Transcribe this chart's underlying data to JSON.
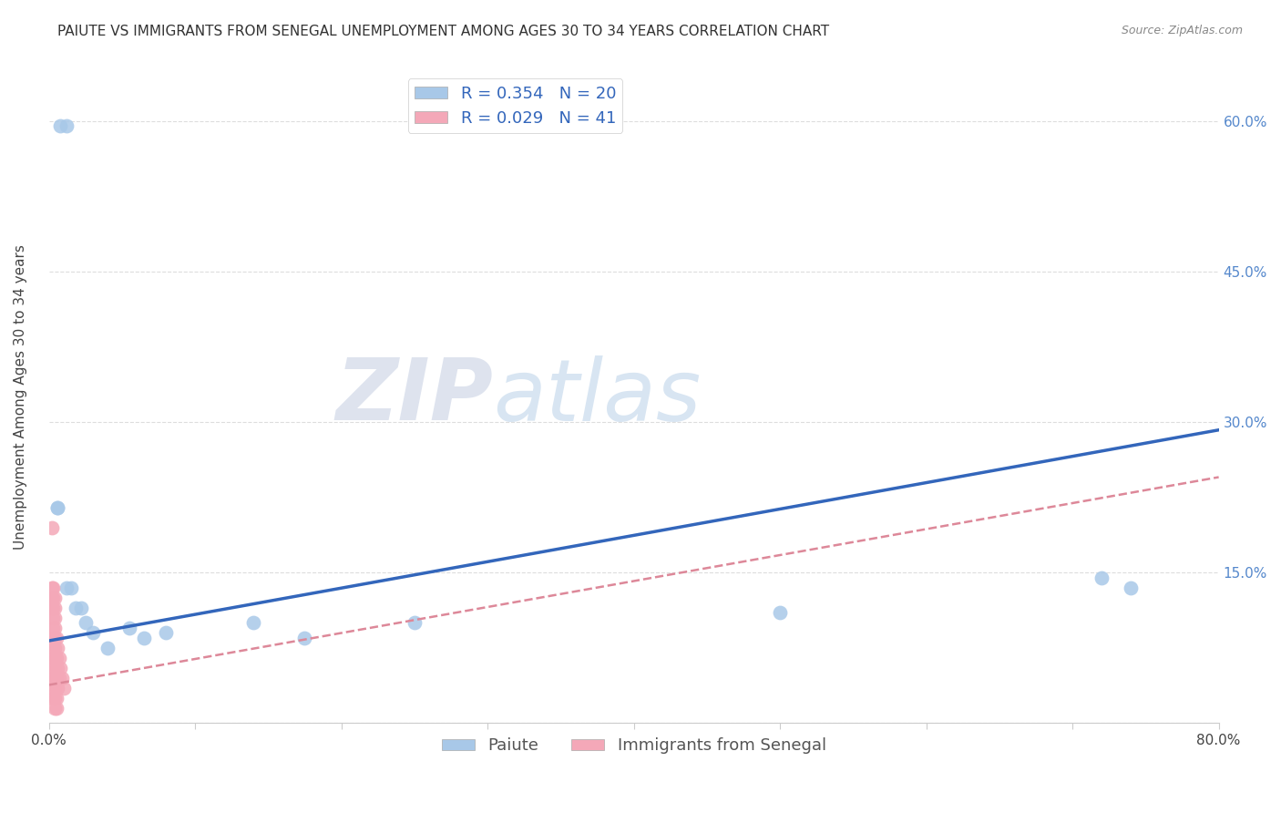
{
  "title": "PAIUTE VS IMMIGRANTS FROM SENEGAL UNEMPLOYMENT AMONG AGES 30 TO 34 YEARS CORRELATION CHART",
  "source": "Source: ZipAtlas.com",
  "ylabel": "Unemployment Among Ages 30 to 34 years",
  "xlim": [
    0.0,
    0.8
  ],
  "ylim": [
    0.0,
    0.65
  ],
  "xticks": [
    0.0,
    0.1,
    0.2,
    0.3,
    0.4,
    0.5,
    0.6,
    0.7,
    0.8
  ],
  "yticks_right": [
    0.0,
    0.15,
    0.3,
    0.45,
    0.6
  ],
  "watermark_zip": "ZIP",
  "watermark_atlas": "atlas",
  "legend": {
    "paiute_R": 0.354,
    "paiute_N": 20,
    "senegal_R": 0.029,
    "senegal_N": 41
  },
  "paiute_color": "#a8c8e8",
  "senegal_color": "#f4a8b8",
  "paiute_line_color": "#3366bb",
  "senegal_line_color": "#dd8899",
  "paiute_points": [
    [
      0.008,
      0.595
    ],
    [
      0.012,
      0.595
    ],
    [
      0.006,
      0.215
    ],
    [
      0.006,
      0.215
    ],
    [
      0.012,
      0.135
    ],
    [
      0.015,
      0.135
    ],
    [
      0.018,
      0.115
    ],
    [
      0.022,
      0.115
    ],
    [
      0.025,
      0.1
    ],
    [
      0.03,
      0.09
    ],
    [
      0.04,
      0.075
    ],
    [
      0.055,
      0.095
    ],
    [
      0.065,
      0.085
    ],
    [
      0.08,
      0.09
    ],
    [
      0.14,
      0.1
    ],
    [
      0.175,
      0.085
    ],
    [
      0.25,
      0.1
    ],
    [
      0.5,
      0.11
    ],
    [
      0.72,
      0.145
    ],
    [
      0.74,
      0.135
    ]
  ],
  "senegal_points": [
    [
      0.002,
      0.195
    ],
    [
      0.002,
      0.135
    ],
    [
      0.002,
      0.125
    ],
    [
      0.002,
      0.115
    ],
    [
      0.003,
      0.135
    ],
    [
      0.003,
      0.125
    ],
    [
      0.003,
      0.115
    ],
    [
      0.003,
      0.105
    ],
    [
      0.003,
      0.095
    ],
    [
      0.003,
      0.085
    ],
    [
      0.003,
      0.075
    ],
    [
      0.003,
      0.065
    ],
    [
      0.003,
      0.055
    ],
    [
      0.003,
      0.045
    ],
    [
      0.003,
      0.035
    ],
    [
      0.003,
      0.025
    ],
    [
      0.004,
      0.125
    ],
    [
      0.004,
      0.115
    ],
    [
      0.004,
      0.105
    ],
    [
      0.004,
      0.095
    ],
    [
      0.004,
      0.085
    ],
    [
      0.004,
      0.075
    ],
    [
      0.004,
      0.065
    ],
    [
      0.004,
      0.055
    ],
    [
      0.004,
      0.045
    ],
    [
      0.004,
      0.035
    ],
    [
      0.004,
      0.025
    ],
    [
      0.004,
      0.015
    ],
    [
      0.005,
      0.085
    ],
    [
      0.005,
      0.065
    ],
    [
      0.005,
      0.045
    ],
    [
      0.005,
      0.025
    ],
    [
      0.005,
      0.015
    ],
    [
      0.006,
      0.075
    ],
    [
      0.006,
      0.055
    ],
    [
      0.006,
      0.035
    ],
    [
      0.007,
      0.065
    ],
    [
      0.007,
      0.045
    ],
    [
      0.008,
      0.055
    ],
    [
      0.009,
      0.045
    ],
    [
      0.01,
      0.035
    ]
  ],
  "background_color": "#ffffff",
  "grid_color": "#dddddd",
  "title_fontsize": 11,
  "axis_label_fontsize": 11,
  "tick_fontsize": 11,
  "legend_fontsize": 13
}
